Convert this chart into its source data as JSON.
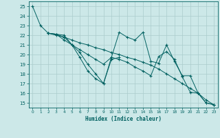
{
  "xlabel": "Humidex (Indice chaleur)",
  "bg_color": "#cce8e8",
  "grid_color": "#b0d0d0",
  "line_color": "#006060",
  "xlim": [
    -0.5,
    23.5
  ],
  "ylim": [
    14.5,
    25.5
  ],
  "xticks": [
    0,
    1,
    2,
    3,
    4,
    5,
    6,
    7,
    8,
    9,
    10,
    11,
    12,
    13,
    14,
    15,
    16,
    17,
    18,
    19,
    20,
    21,
    22,
    23
  ],
  "yticks": [
    15,
    16,
    17,
    18,
    19,
    20,
    21,
    22,
    23,
    24,
    25
  ],
  "series": [
    {
      "x": [
        0,
        1,
        2,
        3,
        4,
        5,
        6,
        7,
        8,
        9,
        10,
        11
      ],
      "y": [
        25.0,
        23.0,
        22.2,
        22.1,
        22.0,
        21.0,
        19.7,
        18.3,
        17.5,
        17.0,
        19.5,
        19.7
      ]
    },
    {
      "x": [
        2,
        3,
        4,
        5,
        6,
        7,
        8,
        9,
        10,
        11,
        12,
        13,
        14,
        15,
        16,
        17,
        18,
        19,
        20,
        21,
        22,
        23
      ],
      "y": [
        22.2,
        22.0,
        21.8,
        21.5,
        21.2,
        21.0,
        20.7,
        20.5,
        20.2,
        20.0,
        19.7,
        19.5,
        19.2,
        18.9,
        18.5,
        18.0,
        17.5,
        17.0,
        16.5,
        16.0,
        15.3,
        14.8
      ]
    },
    {
      "x": [
        2,
        3,
        4,
        5,
        6,
        7,
        8,
        9,
        10,
        11,
        12,
        13,
        14,
        15,
        16,
        17,
        18,
        19,
        20,
        21,
        22,
        23
      ],
      "y": [
        22.2,
        22.1,
        21.8,
        21.0,
        20.2,
        19.0,
        18.0,
        17.0,
        19.7,
        22.3,
        21.8,
        21.5,
        22.3,
        19.3,
        19.1,
        21.0,
        19.3,
        17.8,
        17.8,
        16.0,
        15.0,
        14.8
      ]
    },
    {
      "x": [
        2,
        3,
        4,
        5,
        6,
        7,
        8,
        9,
        10,
        11,
        12,
        13,
        14,
        15,
        16,
        17,
        18,
        19,
        20,
        21,
        22,
        23
      ],
      "y": [
        22.2,
        22.1,
        21.5,
        21.0,
        20.5,
        20.0,
        19.5,
        19.0,
        19.7,
        19.5,
        19.2,
        18.7,
        18.3,
        17.8,
        19.8,
        20.3,
        19.5,
        17.7,
        16.1,
        16.0,
        15.0,
        14.8
      ]
    }
  ]
}
